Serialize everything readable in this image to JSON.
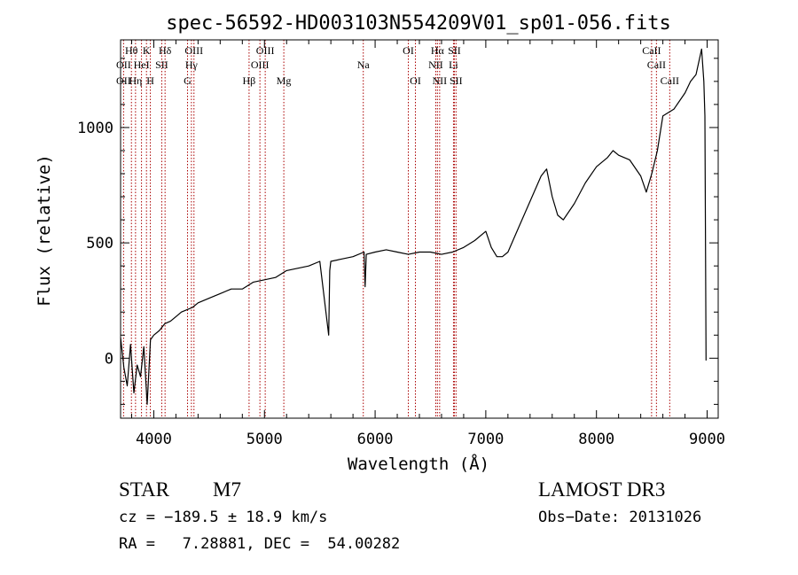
{
  "chart_data": {
    "type": "line",
    "title": "spec-56592-HD003103N554209V01_sp01-056.fits",
    "xlabel": "Wavelength (Å)",
    "ylabel": "Flux (relative)",
    "xlim": [
      3700,
      9100
    ],
    "ylim": [
      -260,
      1380
    ],
    "xticks": [
      4000,
      5000,
      6000,
      7000,
      8000,
      9000
    ],
    "xtick_labels": [
      "4000",
      "5000",
      "6000",
      "7000",
      "8000",
      "9000"
    ],
    "yticks": [
      0,
      500,
      1000
    ],
    "ytick_labels": [
      "0",
      "500",
      "1000"
    ],
    "series": [
      {
        "name": "flux",
        "x": [
          3700,
          3730,
          3760,
          3790,
          3820,
          3850,
          3880,
          3910,
          3940,
          3970,
          4000,
          4050,
          4100,
          4150,
          4200,
          4250,
          4300,
          4350,
          4400,
          4500,
          4600,
          4700,
          4800,
          4900,
          5000,
          5100,
          5200,
          5300,
          5400,
          5500,
          5580,
          5590,
          5600,
          5700,
          5800,
          5900,
          5910,
          5920,
          6000,
          6100,
          6200,
          6300,
          6400,
          6500,
          6600,
          6700,
          6800,
          6900,
          7000,
          7050,
          7100,
          7150,
          7200,
          7300,
          7400,
          7500,
          7550,
          7600,
          7650,
          7700,
          7800,
          7900,
          8000,
          8100,
          8150,
          8200,
          8300,
          8400,
          8450,
          8500,
          8550,
          8600,
          8700,
          8800,
          8850,
          8900,
          8950,
          8970,
          8980,
          8990
        ],
        "values": [
          90,
          -40,
          -120,
          60,
          -150,
          -30,
          -80,
          50,
          -200,
          80,
          100,
          120,
          150,
          160,
          180,
          200,
          210,
          220,
          240,
          260,
          280,
          300,
          300,
          330,
          340,
          350,
          380,
          390,
          400,
          420,
          100,
          380,
          420,
          430,
          440,
          460,
          310,
          450,
          460,
          470,
          460,
          450,
          460,
          460,
          450,
          460,
          480,
          510,
          550,
          480,
          440,
          440,
          460,
          570,
          680,
          790,
          820,
          700,
          620,
          600,
          670,
          760,
          830,
          870,
          900,
          880,
          860,
          790,
          720,
          800,
          900,
          1050,
          1080,
          1150,
          1200,
          1230,
          1340,
          1200,
          1050,
          -10
        ],
        "color": "#000000"
      }
    ],
    "lines": [
      {
        "name": "OII",
        "wavelength": 3727
      },
      {
        "name": "Hθ",
        "wavelength": 3798
      },
      {
        "name": "Hη",
        "wavelength": 3835
      },
      {
        "name": "K",
        "wavelength": 3934
      },
      {
        "name": "HeI",
        "wavelength": 3889
      },
      {
        "name": "H",
        "wavelength": 3969
      },
      {
        "name": "Hδ",
        "wavelength": 4102
      },
      {
        "name": "SII",
        "wavelength": 4072
      },
      {
        "name": "Hγ",
        "wavelength": 4340
      },
      {
        "name": "G",
        "wavelength": 4305
      },
      {
        "name": "OIII",
        "wavelength": 4363
      },
      {
        "name": "Hβ",
        "wavelength": 4861
      },
      {
        "name": "OIII",
        "wavelength": 4959
      },
      {
        "name": "OIII",
        "wavelength": 5007
      },
      {
        "name": "Mg",
        "wavelength": 5175
      },
      {
        "name": "Na",
        "wavelength": 5893
      },
      {
        "name": "OI",
        "wavelength": 6300
      },
      {
        "name": "OI",
        "wavelength": 6364
      },
      {
        "name": "NII",
        "wavelength": 6548
      },
      {
        "name": "Hα",
        "wavelength": 6563
      },
      {
        "name": "NII",
        "wavelength": 6583
      },
      {
        "name": "SII",
        "wavelength": 6716
      },
      {
        "name": "SII",
        "wavelength": 6731
      },
      {
        "name": "Li",
        "wavelength": 6708
      },
      {
        "name": "CaII",
        "wavelength": 8498
      },
      {
        "name": "CaII",
        "wavelength": 8542
      },
      {
        "name": "CaII",
        "wavelength": 8662
      }
    ],
    "line_label_rows": [
      [
        {
          "text": "Hθ",
          "x": 3798
        },
        {
          "text": "K",
          "x": 3934
        },
        {
          "text": "Hδ",
          "x": 4102
        },
        {
          "text": "OIII",
          "x": 4363
        },
        {
          "text": "OIII",
          "x": 5007
        },
        {
          "text": "OI",
          "x": 6300
        },
        {
          "text": "Hα",
          "x": 6563
        },
        {
          "text": "SII",
          "x": 6716
        },
        {
          "text": "CaII",
          "x": 8498
        }
      ],
      [
        {
          "text": "OII",
          "x": 3727
        },
        {
          "text": "HeI",
          "x": 3889
        },
        {
          "text": "SII",
          "x": 4072
        },
        {
          "text": "Hγ",
          "x": 4340
        },
        {
          "text": "OIII",
          "x": 4959
        },
        {
          "text": "Na",
          "x": 5893
        },
        {
          "text": "NII",
          "x": 6548
        },
        {
          "text": "Li",
          "x": 6708
        },
        {
          "text": "CaII",
          "x": 8542
        }
      ],
      [
        {
          "text": "OII",
          "x": 3727
        },
        {
          "text": "Hη",
          "x": 3835
        },
        {
          "text": "H",
          "x": 3969
        },
        {
          "text": "G",
          "x": 4305
        },
        {
          "text": "Hβ",
          "x": 4861
        },
        {
          "text": "Mg",
          "x": 5175
        },
        {
          "text": "OI",
          "x": 6364
        },
        {
          "text": "NII",
          "x": 6583
        },
        {
          "text": "SII",
          "x": 6731
        },
        {
          "text": "CaII",
          "x": 8662
        }
      ]
    ],
    "line_color": "#aa0000"
  },
  "info": {
    "class": "STAR",
    "subclass": "M7",
    "survey": "LAMOST DR3",
    "cz": "cz = −189.5 ± 18.9 km/s",
    "obs_date": "Obs−Date: 20131026",
    "coords": "RA =   7.28881, DEC =  54.00282"
  }
}
